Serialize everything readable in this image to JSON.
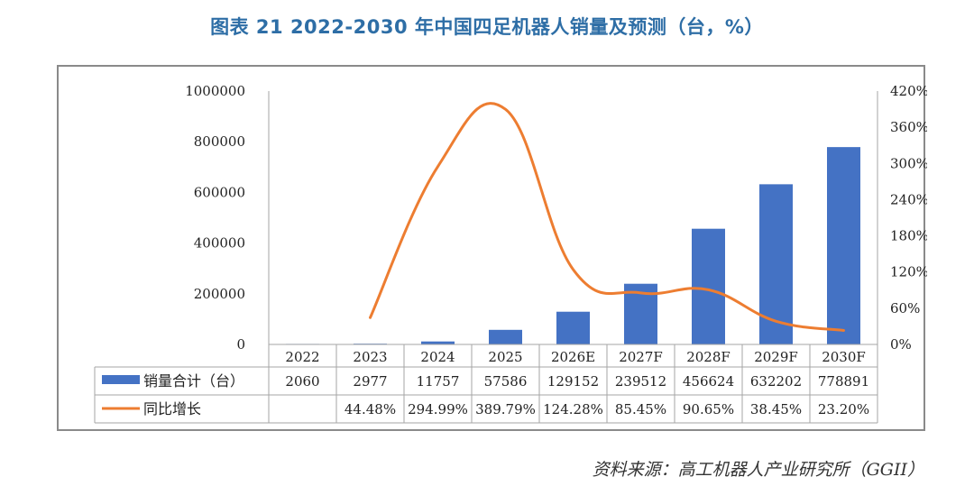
{
  "title": "图表 21   2022-2030 年中国四足机器人销量及预测（台，%）",
  "source": "资料来源：高工机器人产业研究所（GGII）",
  "colors": {
    "bar": "#4472c4",
    "line": "#ed7d31",
    "title": "#2e6ea6"
  },
  "chart_data": {
    "type": "bar",
    "categories": [
      "2022",
      "2023",
      "2024",
      "2025",
      "2026E",
      "2027F",
      "2028F",
      "2029F",
      "2030F"
    ],
    "series": [
      {
        "name": "销量合计（台）",
        "type": "bar",
        "axis": "left",
        "values": [
          2060,
          2977,
          11757,
          57586,
          129152,
          239512,
          456624,
          632202,
          778891
        ],
        "labels": [
          "2060",
          "2977",
          "11757",
          "57586",
          "129152",
          "239512",
          "456624",
          "632202",
          "778891"
        ]
      },
      {
        "name": "同比增长",
        "type": "line",
        "axis": "right",
        "values": [
          null,
          44.48,
          294.99,
          389.79,
          124.28,
          85.45,
          90.65,
          38.45,
          23.2
        ],
        "labels": [
          "",
          "44.48%",
          "294.99%",
          "389.79%",
          "124.28%",
          "85.45%",
          "90.65%",
          "38.45%",
          "23.20%"
        ]
      }
    ],
    "y_left": {
      "ylim": [
        0,
        1000000
      ],
      "ticks": [
        "0",
        "200000",
        "400000",
        "600000",
        "800000",
        "1000000"
      ]
    },
    "y_right": {
      "ylim": [
        0,
        420
      ],
      "ticks": [
        "0%",
        "60%",
        "120%",
        "180%",
        "240%",
        "300%",
        "360%",
        "420%"
      ]
    },
    "grid": false,
    "legend": "data-table"
  }
}
